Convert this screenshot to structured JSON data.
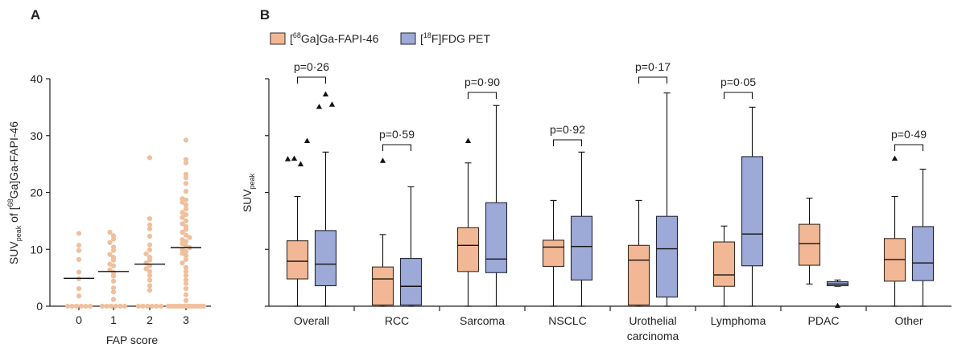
{
  "panels": {
    "a": {
      "label": "A"
    },
    "b": {
      "label": "B"
    }
  },
  "colors": {
    "fapi": "#f2b896",
    "fapi_edge": "#3a2a20",
    "fdg": "#9da9d6",
    "fdg_edge": "#22263a",
    "dot": "#f0bf9c",
    "axis": "#222222"
  },
  "chart_data": [
    {
      "panel": "A",
      "type": "scatter",
      "xlabel": "FAP score",
      "ylabel": "SUVpeak of [68Ga]Ga-FAPI-46",
      "ylabel_parts": [
        "SUV",
        "peak",
        " of [",
        "68",
        "Ga]Ga-FAPI-46"
      ],
      "categories": [
        "0",
        "1",
        "2",
        "3"
      ],
      "ylim": [
        0,
        40
      ],
      "yticks": [
        "0",
        "10",
        "20",
        "30",
        "40"
      ],
      "medians": [
        4.9,
        6.1,
        7.4,
        10.3
      ],
      "points": [
        [
          0,
          0,
          0,
          0,
          0,
          0,
          1.8,
          3.1,
          4.8,
          6.0,
          8.2,
          9.8,
          10.7,
          12.8
        ],
        [
          0,
          0,
          0,
          0,
          0,
          0,
          1.2,
          2.5,
          3.2,
          4.4,
          5.3,
          5.9,
          6.4,
          7.1,
          7.4,
          8.1,
          8.6,
          9.1,
          9.8,
          10.4,
          11.2,
          11.8,
          12.4,
          13.0
        ],
        [
          0,
          0,
          0,
          0,
          0,
          0,
          2.8,
          3.6,
          4.6,
          5.4,
          6.1,
          6.6,
          7.1,
          7.6,
          8.1,
          8.6,
          9.2,
          9.9,
          10.8,
          12.3,
          13.6,
          14.3,
          15.4,
          26.1
        ],
        [
          0,
          0,
          0,
          0,
          0,
          0,
          0,
          0,
          0,
          0,
          0,
          0,
          0,
          0,
          1.0,
          2.0,
          3.1,
          4.0,
          4.6,
          5.4,
          6.1,
          6.8,
          7.6,
          8.2,
          8.9,
          9.3,
          9.6,
          10.0,
          10.3,
          10.6,
          11.0,
          11.4,
          11.7,
          12.1,
          12.5,
          13.0,
          13.5,
          14.0,
          14.5,
          15.0,
          15.6,
          16.1,
          16.5,
          17.1,
          17.8,
          18.3,
          18.7,
          18.9,
          20.2,
          21.6,
          22.6,
          23.2,
          25.2,
          25.8,
          29.2
        ]
      ]
    },
    {
      "panel": "B",
      "type": "box",
      "ylabel": "SUVpeak",
      "ylabel_parts": [
        "SUV",
        "peak"
      ],
      "ylim": [
        0,
        40
      ],
      "legend": {
        "placement": "top-left",
        "entries": [
          {
            "name": "[68Ga]Ga-FAPI-46",
            "parts": [
              "[",
              "68",
              "Ga]Ga-FAPI-46"
            ]
          },
          {
            "name": "[18F]FDG PET",
            "parts": [
              "[",
              "18",
              "F]FDG PET"
            ]
          }
        ]
      },
      "categories": [
        {
          "label": [
            "Overall"
          ],
          "p": "p=0·26"
        },
        {
          "label": [
            "RCC"
          ],
          "p": "p=0·59"
        },
        {
          "label": [
            "Sarcoma"
          ],
          "p": "p=0·90"
        },
        {
          "label": [
            "NSCLC"
          ],
          "p": "p=0·92"
        },
        {
          "label": [
            "Urothelial",
            "carcinoma"
          ],
          "p": "p=0·17"
        },
        {
          "label": [
            "Lymphoma"
          ],
          "p": "p=0·05"
        },
        {
          "label": [
            "PDAC"
          ],
          "p": ""
        },
        {
          "label": [
            "Other"
          ],
          "p": "p=0·49"
        }
      ],
      "series": [
        {
          "name": "[68Ga]Ga-FAPI-46",
          "boxes": [
            {
              "min": 0,
              "q1": 4.8,
              "median": 7.9,
              "q3": 11.5,
              "max": 19.3,
              "outliers": [
                25.9,
                26.0,
                25.0,
                29.1
              ]
            },
            {
              "min": 0,
              "q1": 0.2,
              "median": 4.8,
              "q3": 6.9,
              "max": 12.6,
              "outliers": [
                25.6
              ]
            },
            {
              "min": 0,
              "q1": 6.1,
              "median": 10.7,
              "q3": 13.8,
              "max": 25.2,
              "outliers": [
                29.1
              ]
            },
            {
              "min": 0,
              "q1": 7.0,
              "median": 10.4,
              "q3": 11.6,
              "max": 18.6,
              "outliers": []
            },
            {
              "min": 0,
              "q1": 0.2,
              "median": 8.1,
              "q3": 10.7,
              "max": 18.6,
              "outliers": []
            },
            {
              "min": 0,
              "q1": 3.5,
              "median": 5.5,
              "q3": 11.3,
              "max": 14.1,
              "outliers": []
            },
            {
              "min": 3.9,
              "q1": 7.2,
              "median": 11.0,
              "q3": 14.4,
              "max": 19.0,
              "outliers": []
            },
            {
              "min": 0,
              "q1": 4.4,
              "median": 8.2,
              "q3": 11.9,
              "max": 19.3,
              "outliers": [
                26.0
              ]
            }
          ]
        },
        {
          "name": "[18F]FDG PET",
          "boxes": [
            {
              "min": 0,
              "q1": 3.6,
              "median": 7.4,
              "q3": 13.3,
              "max": 27.1,
              "outliers": [
                35.1,
                37.3,
                35.5
              ]
            },
            {
              "min": 0,
              "q1": 0.2,
              "median": 3.5,
              "q3": 8.4,
              "max": 21.0,
              "outliers": []
            },
            {
              "min": 0,
              "q1": 5.9,
              "median": 8.3,
              "q3": 18.2,
              "max": 35.3,
              "outliers": []
            },
            {
              "min": 0,
              "q1": 4.6,
              "median": 10.5,
              "q3": 15.8,
              "max": 27.1,
              "outliers": []
            },
            {
              "min": 0,
              "q1": 1.6,
              "median": 10.1,
              "q3": 15.8,
              "max": 37.5,
              "outliers": []
            },
            {
              "min": 0,
              "q1": 7.1,
              "median": 12.7,
              "q3": 26.3,
              "max": 35.0,
              "outliers": []
            },
            {
              "min": 3.5,
              "q1": 3.6,
              "median": 3.9,
              "q3": 4.3,
              "max": 4.6,
              "outliers": [
                0.1
              ]
            },
            {
              "min": 0,
              "q1": 4.5,
              "median": 7.6,
              "q3": 14.0,
              "max": 24.1,
              "outliers": []
            }
          ]
        }
      ]
    }
  ]
}
